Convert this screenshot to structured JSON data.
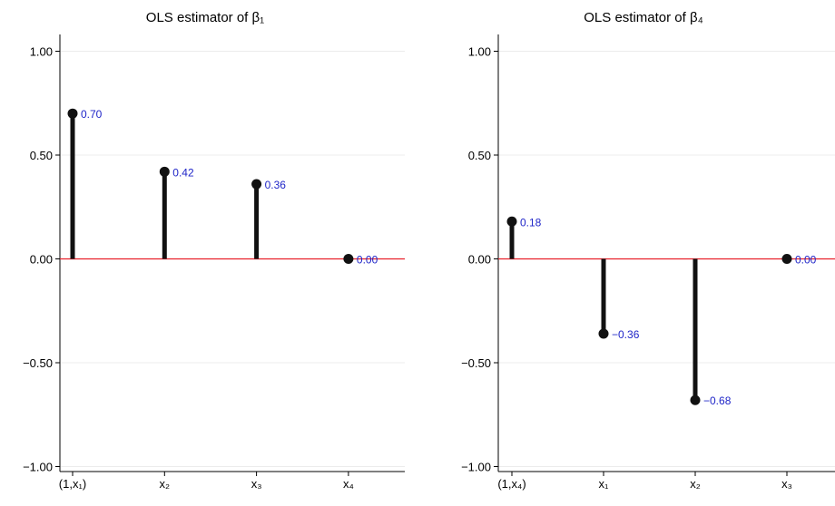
{
  "chart_data": [
    {
      "type": "stem",
      "title": "OLS estimator of β₁",
      "categories": [
        "(1,x₁)",
        "x₂",
        "x₃",
        "x₄"
      ],
      "values": [
        0.7,
        0.42,
        0.36,
        0.0
      ],
      "data_labels": [
        "0.70",
        "0.42",
        "0.36",
        "0.00"
      ],
      "yticks": [
        "1.00",
        "0.50",
        "0.00",
        "−0.50",
        "−1.00"
      ],
      "ytick_values": [
        1.0,
        0.5,
        0.0,
        -0.5,
        -1.0
      ],
      "ylim": [
        -1.05,
        1.05
      ],
      "grid": true,
      "reference_line": 0,
      "colors": {
        "stem": "#111111",
        "reference": "#e8202a",
        "label": "#1f25c8",
        "grid": "#ececec"
      }
    },
    {
      "type": "stem",
      "title": "OLS estimator of β₄",
      "categories": [
        "(1,x₄)",
        "x₁",
        "x₂",
        "x₃"
      ],
      "values": [
        0.18,
        -0.36,
        -0.68,
        0.0
      ],
      "data_labels": [
        "0.18",
        "−0.36",
        "−0.68",
        "0.00"
      ],
      "yticks": [
        "1.00",
        "0.50",
        "0.00",
        "−0.50",
        "−1.00"
      ],
      "ytick_values": [
        1.0,
        0.5,
        0.0,
        -0.5,
        -1.0
      ],
      "ylim": [
        -1.05,
        1.05
      ],
      "grid": true,
      "reference_line": 0,
      "colors": {
        "stem": "#111111",
        "reference": "#e8202a",
        "label": "#1f25c8",
        "grid": "#ececec"
      }
    }
  ]
}
